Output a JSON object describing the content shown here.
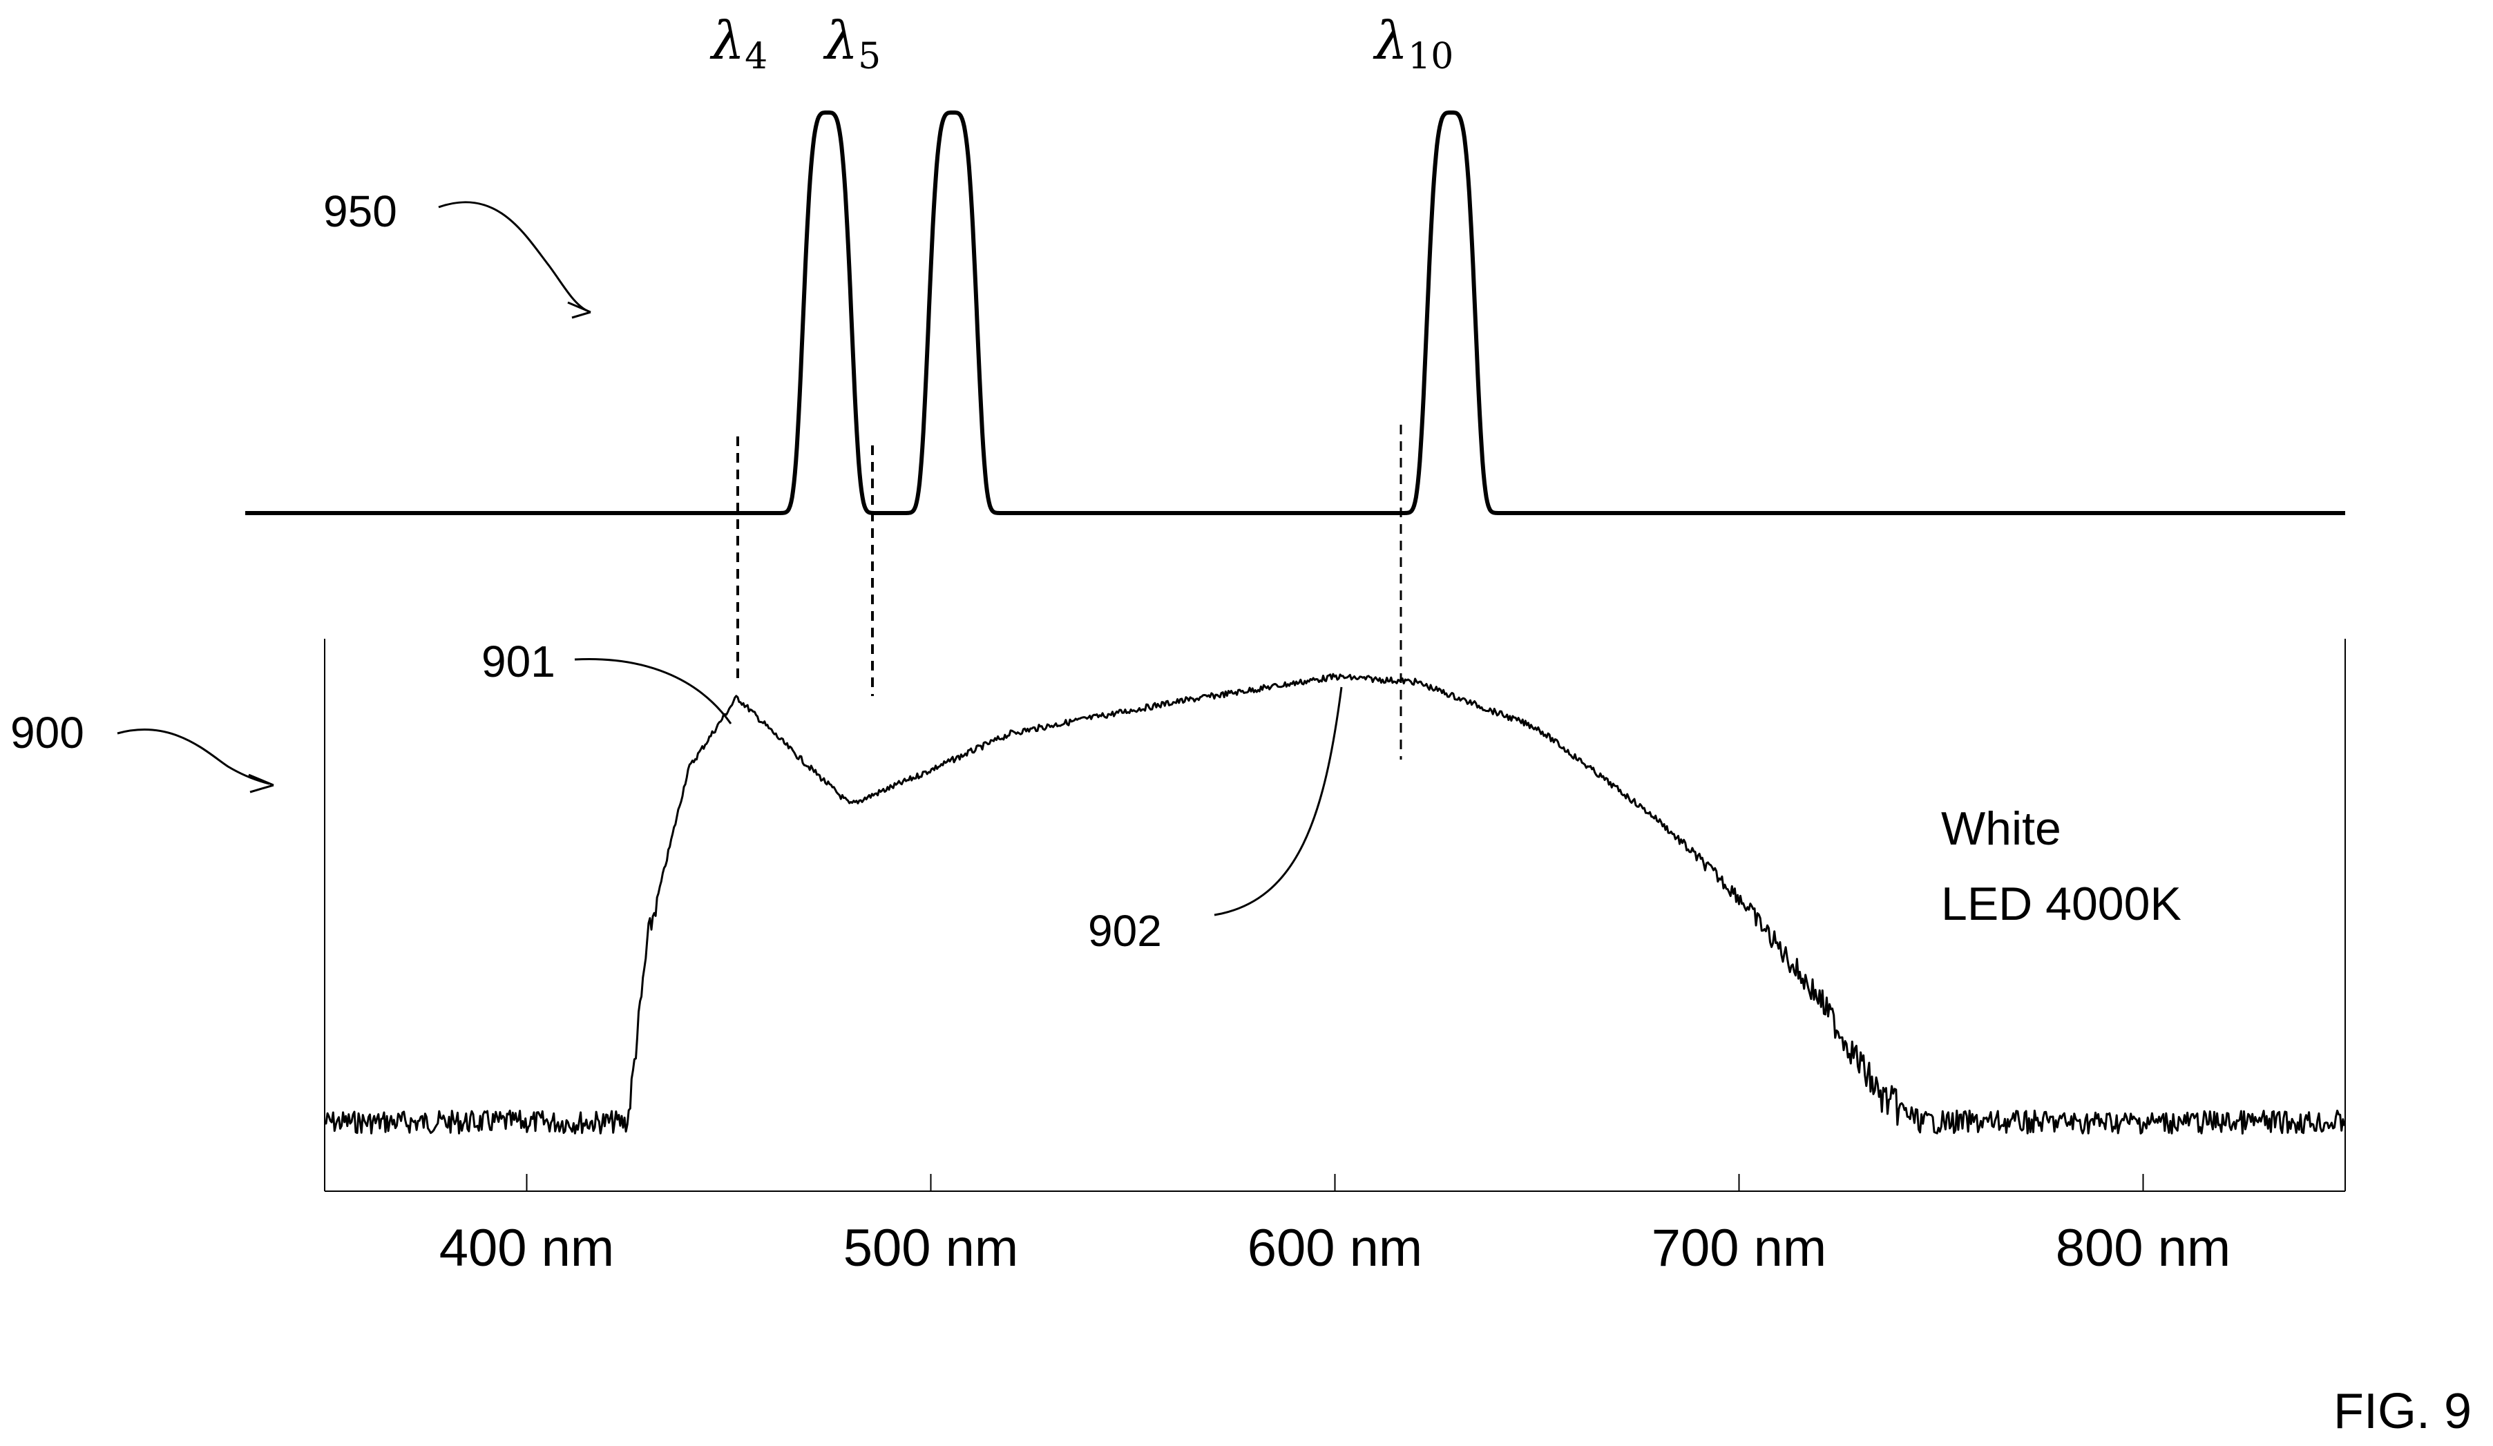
{
  "figure_label": "FIG. 9",
  "top_panel": {
    "ref": "950",
    "peaks": [
      {
        "symbol": "λ",
        "sub": "4",
        "center_nm": 453
      },
      {
        "symbol": "λ",
        "sub": "5",
        "center_nm": 486
      },
      {
        "symbol": "λ",
        "sub": "10",
        "center_nm": 617
      }
    ]
  },
  "bottom_panel": {
    "ref": "900",
    "callout_901": "901",
    "callout_902": "902",
    "legend_line1": "White",
    "legend_line2": "LED 4000K"
  },
  "chart_data": {
    "type": "line",
    "x_ticks": [
      "400 nm",
      "500 nm",
      "600 nm",
      "700 nm",
      "800 nm"
    ],
    "xlim": [
      350,
      850
    ],
    "series": [
      {
        "x": [
          350,
          425,
          430,
          440,
          452,
          465,
          480,
          495,
          520,
          560,
          600,
          620,
          650,
          680,
          700,
          720,
          735,
          745,
          850
        ],
        "y": [
          0.06,
          0.06,
          0.42,
          0.75,
          0.89,
          0.79,
          0.68,
          0.73,
          0.82,
          0.88,
          0.93,
          0.92,
          0.83,
          0.65,
          0.5,
          0.3,
          0.11,
          0.06,
          0.06
        ]
      },
      {
        "x": [
          350,
          453,
          486,
          617,
          850
        ],
        "y": [
          0,
          1,
          1,
          1,
          0
        ]
      }
    ]
  }
}
